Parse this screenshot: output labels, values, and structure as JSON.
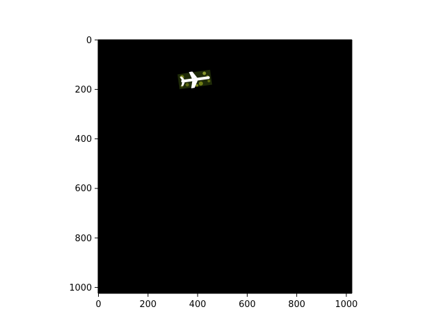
{
  "figure": {
    "background": "#ffffff",
    "axes_color": "#000000",
    "image_background": "#000000"
  },
  "image": {
    "width": 1024,
    "height": 1024,
    "content": "aerial-airplane-patch",
    "patch_colors": {
      "vegetation_dark": "#1e2a08",
      "vegetation_light": "#6f7d15",
      "airplane": "#ffffff"
    }
  },
  "axes": {
    "x_ticks": [
      0,
      200,
      400,
      600,
      800,
      1000
    ],
    "y_ticks": [
      0,
      200,
      400,
      600,
      800,
      1000
    ],
    "x_tick_labels": [
      "0",
      "200",
      "400",
      "600",
      "800",
      "1000"
    ],
    "y_tick_labels": [
      "0",
      "200",
      "400",
      "600",
      "800",
      "1000"
    ],
    "xlim": [
      0,
      1024
    ],
    "ylim": [
      1024,
      0
    ]
  }
}
